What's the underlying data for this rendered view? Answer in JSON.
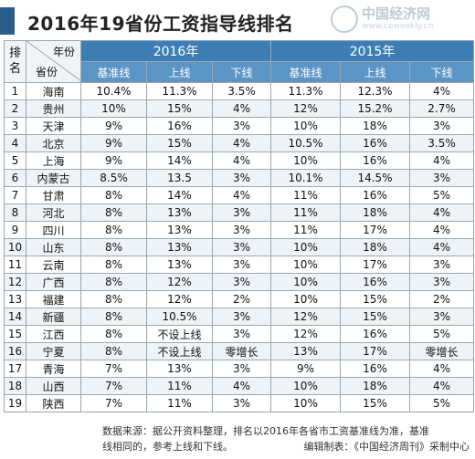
{
  "title": "2016年19省份工资指导线排名",
  "logo": {
    "name": "中国经济网",
    "url": "www.ceweekly.cn"
  },
  "header": {
    "rank_label": "排名",
    "year_label": "年份",
    "province_label": "省份",
    "years": [
      "2016年",
      "2015年"
    ],
    "sub": [
      "基准线",
      "上线",
      "下线",
      "基准线",
      "上线",
      "下线"
    ]
  },
  "rows": [
    [
      "1",
      "海南",
      "10.4%",
      "11.3%",
      "3.5%",
      "11.3%",
      "12.3%",
      "4%"
    ],
    [
      "2",
      "贵州",
      "10%",
      "15%",
      "4%",
      "12%",
      "15.2%",
      "2.7%"
    ],
    [
      "3",
      "天津",
      "9%",
      "16%",
      "3%",
      "10%",
      "18%",
      "3%"
    ],
    [
      "4",
      "北京",
      "9%",
      "15%",
      "4%",
      "10.5%",
      "16%",
      "3.5%"
    ],
    [
      "5",
      "上海",
      "9%",
      "14%",
      "4%",
      "10%",
      "16%",
      "4%"
    ],
    [
      "6",
      "内蒙古",
      "8.5%",
      "13.5",
      "3%",
      "10.1%",
      "14.5%",
      "3%"
    ],
    [
      "7",
      "甘肃",
      "8%",
      "14%",
      "4%",
      "11%",
      "16%",
      "5%"
    ],
    [
      "8",
      "河北",
      "8%",
      "13%",
      "3%",
      "11%",
      "18%",
      "4%"
    ],
    [
      "9",
      "四川",
      "8%",
      "13%",
      "3%",
      "11%",
      "17%",
      "4%"
    ],
    [
      "10",
      "山东",
      "8%",
      "13%",
      "3%",
      "10%",
      "18%",
      "4%"
    ],
    [
      "11",
      "云南",
      "8%",
      "13%",
      "3%",
      "10%",
      "17%",
      "3%"
    ],
    [
      "12",
      "广西",
      "8%",
      "12%",
      "3%",
      "10%",
      "16%",
      "3%"
    ],
    [
      "13",
      "福建",
      "8%",
      "12%",
      "2%",
      "10%",
      "15%",
      "2%"
    ],
    [
      "14",
      "新疆",
      "8%",
      "10.5%",
      "3%",
      "12%",
      "15%",
      "3%"
    ],
    [
      "15",
      "江西",
      "8%",
      "不设上线",
      "3%",
      "12%",
      "16%",
      "5%"
    ],
    [
      "16",
      "宁夏",
      "8%",
      "不设上线",
      "零增长",
      "13%",
      "17%",
      "零增长"
    ],
    [
      "17",
      "青海",
      "7%",
      "13%",
      "3%",
      "9%",
      "16%",
      "4%"
    ],
    [
      "18",
      "山西",
      "7%",
      "11%",
      "4%",
      "10%",
      "18%",
      "4%"
    ],
    [
      "19",
      "陕西",
      "7%",
      "11%",
      "3%",
      "10%",
      "15%",
      "5%"
    ]
  ],
  "footer": {
    "source": "数据来源：据公开资料整理，排名以2016年各省市工资基准线为准，基准",
    "source_cont": "线相同的，参考上线和下线。",
    "credit": "编辑制表：《中国经济周刊》采制中心"
  }
}
